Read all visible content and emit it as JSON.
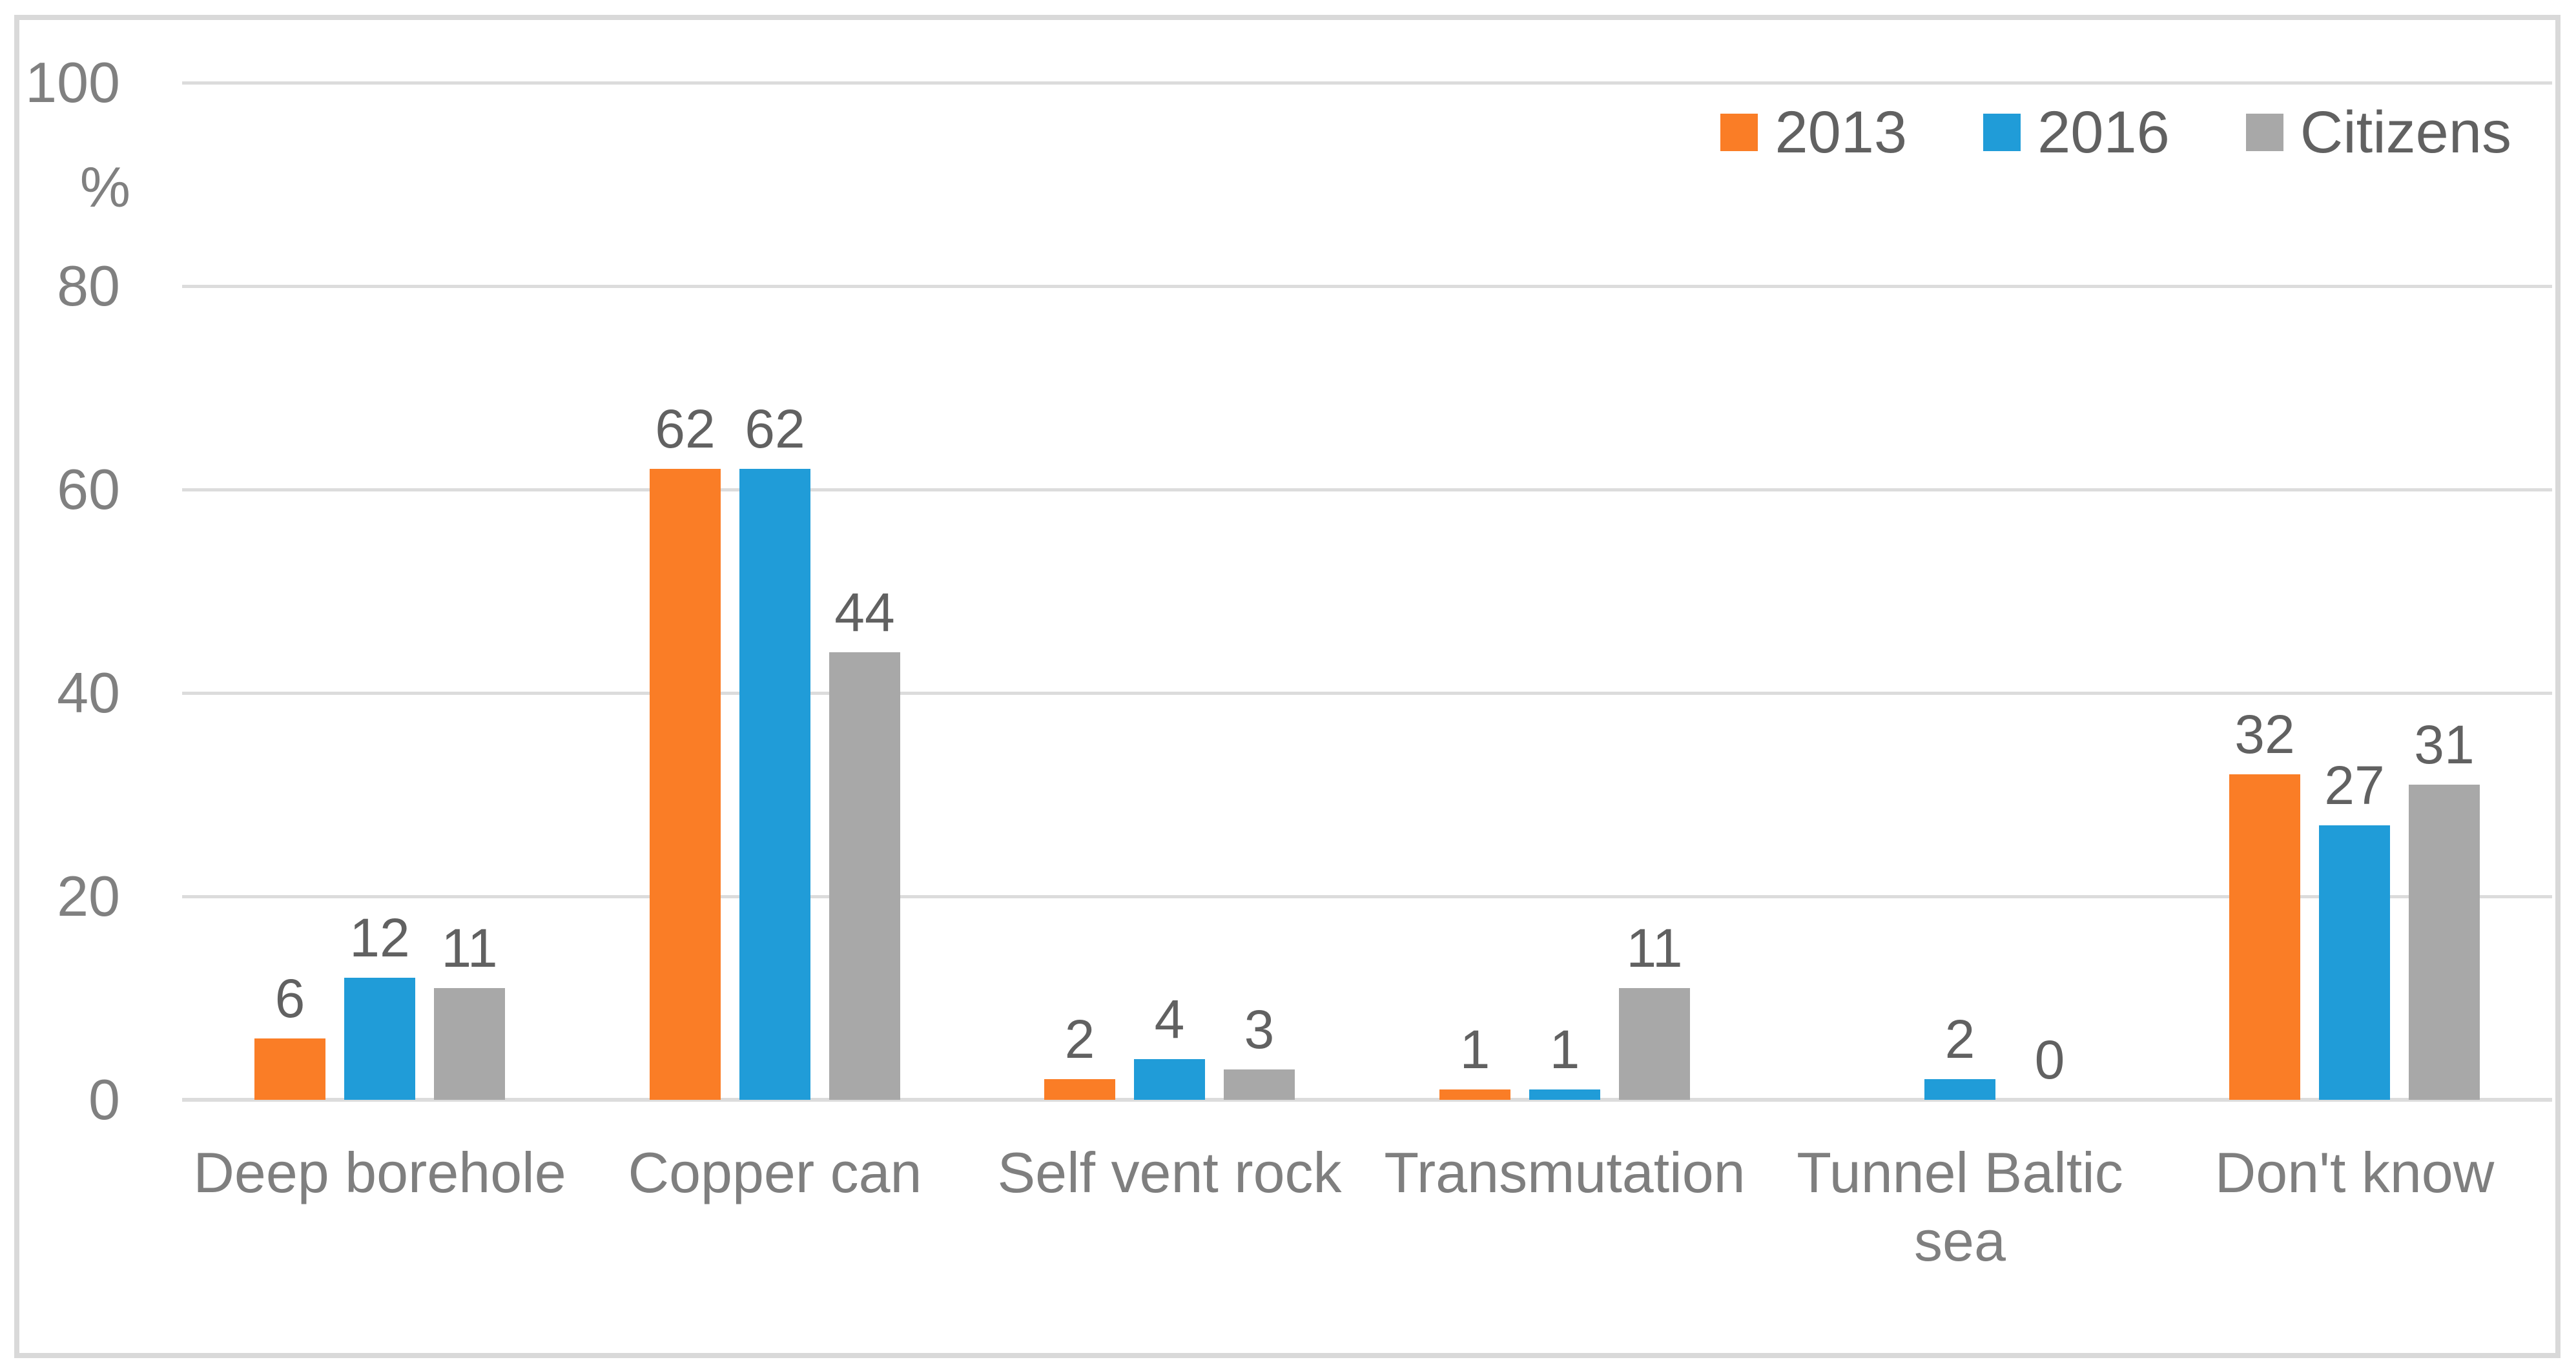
{
  "chart_data": {
    "type": "bar",
    "title": "",
    "ylabel": "%",
    "xlabel": "",
    "ylim": [
      0,
      100
    ],
    "yticks": [
      0,
      20,
      40,
      60,
      80,
      100
    ],
    "grid": "horizontal",
    "legend_position": "top-right",
    "data_labels_shown": true,
    "categories": [
      "Deep borehole",
      "Copper can",
      "Self vent rock",
      "Transmutation",
      "Tunnel Baltic sea",
      "Don't know"
    ],
    "series": [
      {
        "name": "2013",
        "color": "#FA7D26",
        "values": [
          6,
          62,
          2,
          1,
          null,
          32
        ]
      },
      {
        "name": "2016",
        "color": "#209CD8",
        "values": [
          12,
          62,
          4,
          1,
          2,
          27
        ]
      },
      {
        "name": "Citizens",
        "color": "#A8A8A8",
        "values": [
          11,
          44,
          3,
          11,
          0,
          31
        ]
      }
    ]
  },
  "colors": {
    "background": "#FFFFFF",
    "chart_border": "#D9D9D9",
    "gridline": "#DCDCDC",
    "tick_label": "#808080",
    "category_label": "#7F7F7F",
    "data_label": "#616161",
    "legend_label": "#616161"
  }
}
